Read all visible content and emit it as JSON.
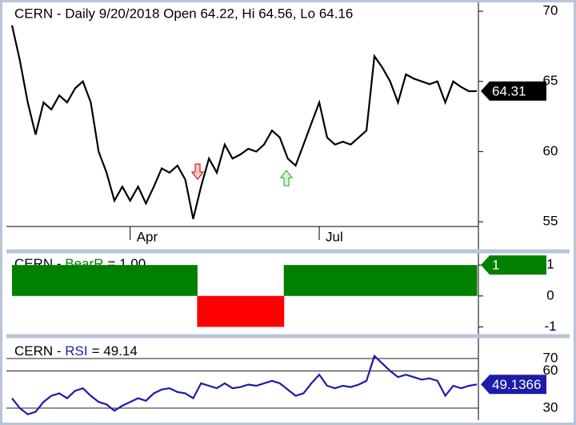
{
  "chart_data": [
    {
      "type": "line",
      "title": "CERN - Daily 9/20/2018 Open 64.22, Hi 64.56, Lo 64.16",
      "color": "#000000",
      "categories": [
        null,
        null,
        null,
        null,
        null,
        null,
        null,
        null,
        null,
        null,
        null,
        null,
        null,
        null,
        null,
        "Apr",
        null,
        null,
        null,
        null,
        null,
        null,
        null,
        null,
        null,
        null,
        null,
        null,
        null,
        null,
        null,
        null,
        null,
        null,
        null,
        null,
        null,
        null,
        null,
        "Jul",
        null,
        null,
        null,
        null,
        null,
        null,
        null,
        null,
        null,
        null,
        null,
        null,
        null,
        null,
        null,
        null,
        null,
        null,
        null,
        null
      ],
      "values": [
        69,
        66.5,
        63.5,
        61.2,
        63.5,
        63,
        64,
        63.5,
        64.5,
        65,
        63.5,
        60,
        58.5,
        56.5,
        57.5,
        56.5,
        57.5,
        56.3,
        57.5,
        58.8,
        58.5,
        59,
        58,
        55.2,
        57.5,
        59.5,
        58.5,
        60.5,
        59.5,
        59.8,
        60.2,
        60,
        60.5,
        61.5,
        61,
        59.5,
        59,
        60.5,
        62,
        63.5,
        61,
        60.5,
        60.7,
        60.5,
        61,
        61.5,
        66.8,
        66,
        65,
        63.5,
        65.5,
        65.2,
        65,
        64.8,
        65,
        63.5,
        65,
        64.6,
        64.3,
        64.31
      ],
      "ylim": [
        54.66,
        70.63
      ],
      "yticks": [
        55,
        60,
        65,
        70
      ]
    },
    {
      "type": "bar",
      "title": [
        "CERN - ",
        "BearR",
        "= 1.00"
      ],
      "color": "#008000",
      "negative_color": "#ff0000",
      "values": [
        1,
        1,
        1,
        1,
        1,
        1,
        1,
        1,
        1,
        1,
        1,
        1,
        1,
        1,
        1,
        1,
        1,
        1,
        1,
        1,
        1,
        1,
        1,
        1,
        -1,
        -1,
        -1,
        -1,
        -1,
        -1,
        -1,
        -1,
        -1,
        -1,
        -1,
        1,
        1,
        1,
        1,
        1,
        1,
        1,
        1,
        1,
        1,
        1,
        1,
        1,
        1,
        1,
        1,
        1,
        1,
        1,
        1,
        1,
        1,
        1,
        1,
        1
      ],
      "ylim": [
        -1.17,
        1.34
      ],
      "yticks": [
        -1,
        0,
        1
      ]
    },
    {
      "type": "line",
      "title": [
        "CERN - ",
        "RSI",
        "= 49.14"
      ],
      "color": "#1c1ca8",
      "values": [
        38,
        30,
        25,
        27,
        35,
        40,
        42,
        38,
        44,
        46,
        40,
        35,
        33,
        28,
        32,
        35,
        38,
        36,
        42,
        45,
        46,
        43,
        42,
        38,
        50,
        48,
        46,
        50,
        46,
        47,
        49,
        48,
        50,
        52,
        50,
        45,
        40,
        42,
        50,
        57,
        48,
        46,
        48,
        47,
        49,
        52,
        72,
        66,
        60,
        55,
        57,
        55,
        53,
        54,
        52,
        40,
        48,
        46,
        48,
        49.14
      ],
      "last_value": 49.1366,
      "ylim": [
        20.3,
        83.5
      ],
      "yticks": [
        30,
        60,
        70
      ],
      "grid": true
    }
  ]
}
